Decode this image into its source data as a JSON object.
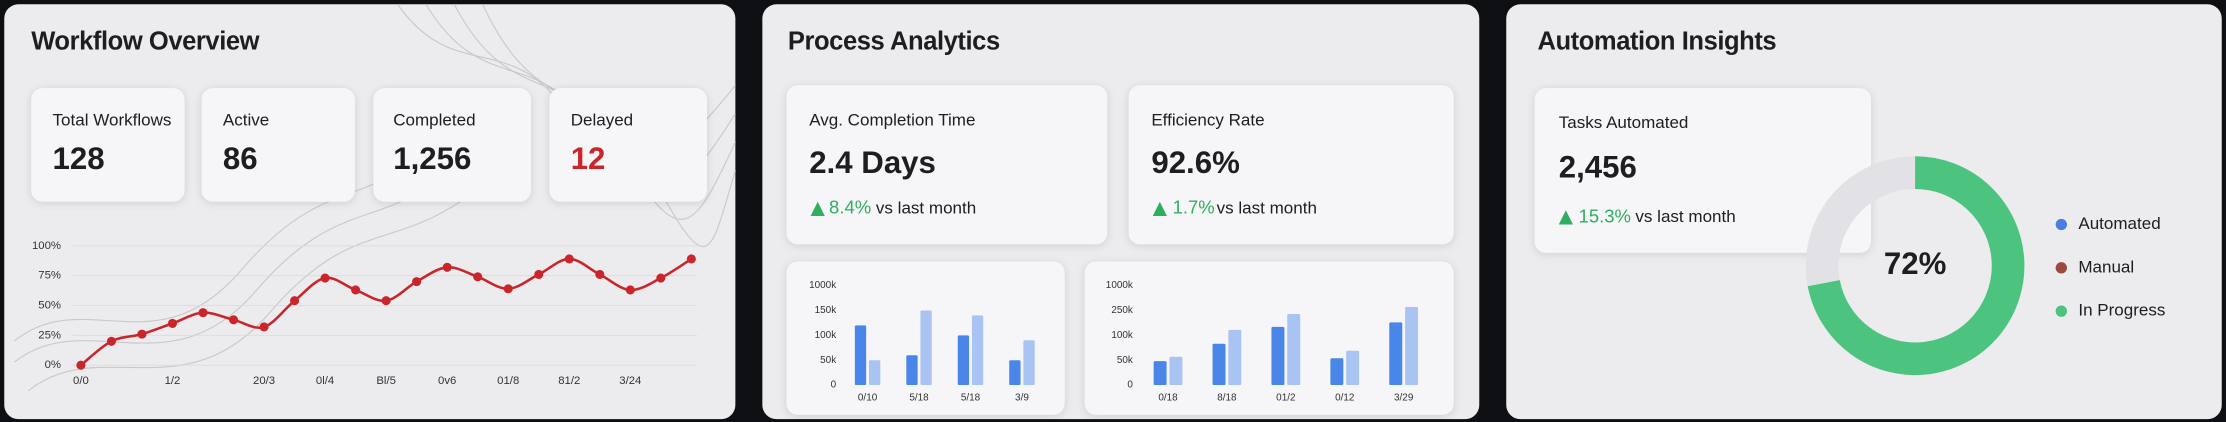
{
  "panels": [
    {
      "title": "Workflow Overview",
      "cards": [
        {
          "label": "Total Workflows",
          "value": "128"
        },
        {
          "label": "Active",
          "value": "86"
        },
        {
          "label": "Completed",
          "value": "1,256"
        },
        {
          "label": "Delayed",
          "value": "12"
        }
      ]
    },
    {
      "title": "Process Analytics",
      "cards": [
        {
          "label": "Avg. Completion Time",
          "value": "2.4 Days",
          "change": "8.4%",
          "change_note": "vs last month"
        },
        {
          "label": "Efficiency Rate",
          "value": "92.6%",
          "change": "1.7%",
          "change_note": "vs last month"
        }
      ]
    },
    {
      "title": "Automation Insights",
      "cards": [
        {
          "label": "Tasks Automated",
          "value": "2,456",
          "change": "15.3%",
          "change_note": "vs last month"
        }
      ]
    }
  ],
  "chart_data": [
    {
      "type": "line",
      "x": [
        0,
        1,
        2,
        3,
        4,
        5,
        6,
        7,
        8,
        9,
        10,
        11,
        12,
        13,
        14,
        15,
        16,
        17,
        18,
        19,
        20
      ],
      "xlim": [
        0,
        20
      ],
      "xticks": [
        {
          "value": 0,
          "label": "0/0"
        },
        {
          "value": 3,
          "label": "1/2"
        },
        {
          "value": 6,
          "label": "20/3"
        },
        {
          "value": 8,
          "label": "0l/4"
        },
        {
          "value": 10,
          "label": "Bl/5"
        },
        {
          "value": 12,
          "label": "0v6"
        },
        {
          "value": 14,
          "label": "01/8"
        },
        {
          "value": 16,
          "label": "81/2"
        },
        {
          "value": 18,
          "label": "3/24"
        }
      ],
      "ylim": [
        0,
        100
      ],
      "yticks": [
        {
          "value": 0,
          "label": "0%"
        },
        {
          "value": 25,
          "label": "25%"
        },
        {
          "value": 50,
          "label": "50%"
        },
        {
          "value": 75,
          "label": "75%"
        },
        {
          "value": 100,
          "label": "100%"
        }
      ],
      "grid": true,
      "series": [
        {
          "color": "#c9252b",
          "values": [
            0,
            20,
            26,
            35,
            44,
            38,
            32,
            54,
            73,
            63,
            54,
            70,
            82,
            74,
            64,
            76,
            89,
            76,
            63,
            73,
            89
          ]
        }
      ]
    },
    {
      "type": "bar",
      "categories": [
        "0/10",
        "5/18",
        "5/18",
        "3/9"
      ],
      "ylim": [
        0,
        200000
      ],
      "yticks": [
        0,
        {
          "value": 50000,
          "label": "50k"
        },
        {
          "value": 100000,
          "label": "100k"
        },
        {
          "value": 150000,
          "label": "150k"
        }
      ],
      "axis_top_labels": [
        "1000k"
      ],
      "series": [
        {
          "color": "#4a86e8",
          "values": [
            120000,
            60000,
            100000,
            50000
          ]
        },
        {
          "color": "#a9c4f2",
          "values": [
            50000,
            150000,
            140000,
            90000
          ]
        }
      ]
    },
    {
      "type": "bar",
      "categories": [
        "0/18",
        "8/18",
        "01/2",
        "0/12",
        "3/29"
      ],
      "ylim": [
        0,
        200000
      ],
      "yticks": [
        0,
        {
          "value": 50000,
          "label": "50k"
        },
        {
          "value": 100000,
          "label": "100k"
        }
      ],
      "axis_top_labels": [
        "250k",
        "1000k"
      ],
      "series": [
        {
          "color": "#4a86e8",
          "values": [
            48000,
            83000,
            117000,
            54000,
            126000
          ]
        },
        {
          "color": "#a9c4f2",
          "values": [
            57000,
            111000,
            143000,
            69000,
            157000
          ]
        }
      ]
    },
    {
      "type": "donut",
      "value": 72,
      "value_label": "72%",
      "color": "#4cc47f",
      "track_color": "#e2e2e6",
      "legend": [
        {
          "name": "Automated",
          "color": "#4a7fe0"
        },
        {
          "name": "Manual",
          "color": "#9b4a3f"
        },
        {
          "name": "In Progress",
          "color": "#4cc47f"
        }
      ]
    }
  ]
}
